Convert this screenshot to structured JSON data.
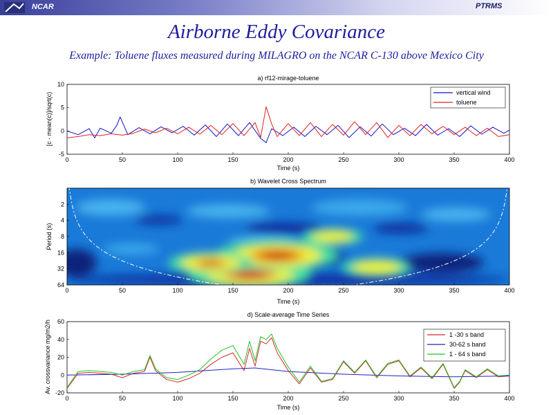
{
  "header": {
    "org": "NCAR",
    "tag": "PTRMS",
    "title": "Airborne Eddy Covariance",
    "subtitle": "Example: Toluene fluxes measured during MILAGRO on the NCAR C-130 above Mexico City"
  },
  "colors": {
    "title": "#1c1c9e",
    "vertical_wind": "#1010c8",
    "toluene": "#e02020",
    "band_1_30": "#d82828",
    "band_30_62": "#2020c0",
    "band_1_64": "#22c022"
  },
  "chart_data": [
    {
      "type": "line",
      "title": "a) rf12-mirage-toluene",
      "xlabel": "Time (s)",
      "ylabel": "[c - mean(c)]/sqrt(c)",
      "xlim": [
        0,
        400
      ],
      "ylim": [
        -5,
        10
      ],
      "x_ticks": [
        0,
        50,
        100,
        150,
        200,
        250,
        300,
        350,
        400
      ],
      "y_ticks": [
        -5,
        0,
        5,
        10
      ],
      "legend": "top-right",
      "series": [
        {
          "name": "vertical wind",
          "color": "#1010c8",
          "x": [
            0,
            10,
            20,
            25,
            30,
            40,
            45,
            48,
            55,
            65,
            75,
            85,
            95,
            105,
            115,
            125,
            135,
            145,
            155,
            165,
            175,
            180,
            185,
            195,
            205,
            215,
            225,
            235,
            245,
            255,
            265,
            275,
            285,
            295,
            305,
            315,
            325,
            335,
            345,
            355,
            365,
            375,
            385,
            395,
            400
          ],
          "values": [
            0,
            -0.8,
            0.5,
            -1.5,
            0.6,
            -0.5,
            1.2,
            3.0,
            -0.8,
            0.7,
            -0.6,
            0.9,
            -0.4,
            1.0,
            -0.9,
            1.3,
            -1.2,
            1.5,
            -1.0,
            1.8,
            -1.6,
            -2.5,
            0.5,
            -1.0,
            0.8,
            -1.2,
            1.0,
            -0.8,
            1.2,
            -1.4,
            0.9,
            -1.1,
            1.5,
            -0.8,
            0.6,
            -1.0,
            1.4,
            -0.9,
            0.5,
            -1.2,
            1.1,
            -0.7,
            0.8,
            -0.5,
            0.2
          ]
        },
        {
          "name": "toluene",
          "color": "#e02020",
          "x": [
            0,
            10,
            20,
            30,
            40,
            50,
            60,
            70,
            80,
            90,
            100,
            110,
            120,
            130,
            140,
            150,
            160,
            170,
            175,
            180,
            185,
            190,
            200,
            210,
            220,
            230,
            240,
            250,
            260,
            270,
            280,
            290,
            300,
            310,
            320,
            330,
            340,
            350,
            360,
            370,
            380,
            390,
            400
          ],
          "values": [
            -1.5,
            -1.2,
            -0.8,
            -1.0,
            -0.6,
            -0.9,
            -0.5,
            0.4,
            -0.4,
            0.6,
            -0.6,
            0.8,
            -0.7,
            1.2,
            -0.8,
            1.6,
            -1.0,
            1.8,
            -1.4,
            5.2,
            1.5,
            -1.2,
            1.6,
            -1.0,
            1.8,
            -1.2,
            1.4,
            -0.9,
            2.0,
            -0.8,
            1.8,
            -1.4,
            1.2,
            -1.0,
            1.4,
            -0.6,
            1.0,
            -0.8,
            0.8,
            -1.0,
            0.6,
            -1.2,
            -0.8
          ]
        }
      ]
    },
    {
      "type": "heatmap",
      "title": "b) Wavelet Cross Spectrum",
      "xlabel": "Time (s)",
      "ylabel": "Period (s)",
      "xlim": [
        0,
        400
      ],
      "x_ticks": [
        0,
        50,
        100,
        150,
        200,
        250,
        300,
        350,
        400
      ],
      "y_ticks": [
        2,
        4,
        8,
        16,
        32,
        64
      ],
      "hotspots": [
        {
          "t": 165,
          "period": 40,
          "intensity": 1.0
        },
        {
          "t": 190,
          "period": 18,
          "intensity": 1.0
        },
        {
          "t": 130,
          "period": 25,
          "intensity": 0.6
        },
        {
          "t": 280,
          "period": 30,
          "intensity": 0.45
        },
        {
          "t": 240,
          "period": 8,
          "intensity": 0.35
        }
      ],
      "cone_of_influence": true
    },
    {
      "type": "line",
      "title": "d) Scale-average Time Series",
      "xlabel": "Time (s)",
      "ylabel": "Av. crossvariance mg/m2/h",
      "xlim": [
        0,
        400
      ],
      "ylim": [
        -20,
        60
      ],
      "x_ticks": [
        0,
        50,
        100,
        150,
        200,
        250,
        300,
        350,
        400
      ],
      "y_ticks": [
        -20,
        0,
        20,
        40,
        60
      ],
      "legend": "top-right",
      "series": [
        {
          "name": "1 -30 s band",
          "color": "#d82828",
          "x": [
            0,
            10,
            20,
            30,
            40,
            50,
            60,
            70,
            75,
            80,
            90,
            100,
            110,
            120,
            130,
            140,
            150,
            160,
            165,
            170,
            175,
            180,
            185,
            190,
            200,
            210,
            220,
            230,
            240,
            250,
            260,
            270,
            280,
            290,
            300,
            310,
            320,
            330,
            340,
            350,
            355,
            360,
            370,
            380,
            390,
            400
          ],
          "values": [
            -15,
            2,
            3,
            2,
            1,
            -3,
            2,
            4,
            20,
            5,
            -5,
            -8,
            -4,
            2,
            12,
            20,
            25,
            5,
            30,
            10,
            38,
            35,
            42,
            25,
            5,
            -10,
            8,
            -8,
            -5,
            15,
            2,
            16,
            -3,
            12,
            16,
            -2,
            8,
            -4,
            12,
            -15,
            -8,
            5,
            -3,
            6,
            -2,
            -1
          ]
        },
        {
          "name": "30-62 s band",
          "color": "#2020c0",
          "x": [
            0,
            50,
            100,
            150,
            170,
            200,
            250,
            300,
            350,
            400
          ],
          "values": [
            0,
            1,
            3,
            7,
            8,
            4,
            1,
            -1,
            -2,
            -1
          ]
        },
        {
          "name": "1 - 64 s band",
          "color": "#22c022",
          "x": [
            0,
            10,
            20,
            30,
            40,
            50,
            60,
            70,
            75,
            80,
            90,
            100,
            110,
            120,
            130,
            140,
            150,
            160,
            165,
            170,
            175,
            180,
            185,
            190,
            200,
            210,
            220,
            230,
            240,
            250,
            260,
            270,
            280,
            290,
            300,
            310,
            320,
            330,
            340,
            350,
            355,
            360,
            370,
            380,
            390,
            400
          ],
          "values": [
            -14,
            4,
            5,
            4,
            3,
            0,
            4,
            6,
            22,
            7,
            -3,
            -5,
            0,
            6,
            18,
            28,
            33,
            12,
            38,
            16,
            43,
            40,
            46,
            30,
            9,
            -8,
            10,
            -7,
            -4,
            16,
            3,
            17,
            -2,
            13,
            17,
            -1,
            9,
            -3,
            13,
            -14,
            -7,
            6,
            -2,
            7,
            -1,
            0
          ]
        }
      ]
    }
  ]
}
